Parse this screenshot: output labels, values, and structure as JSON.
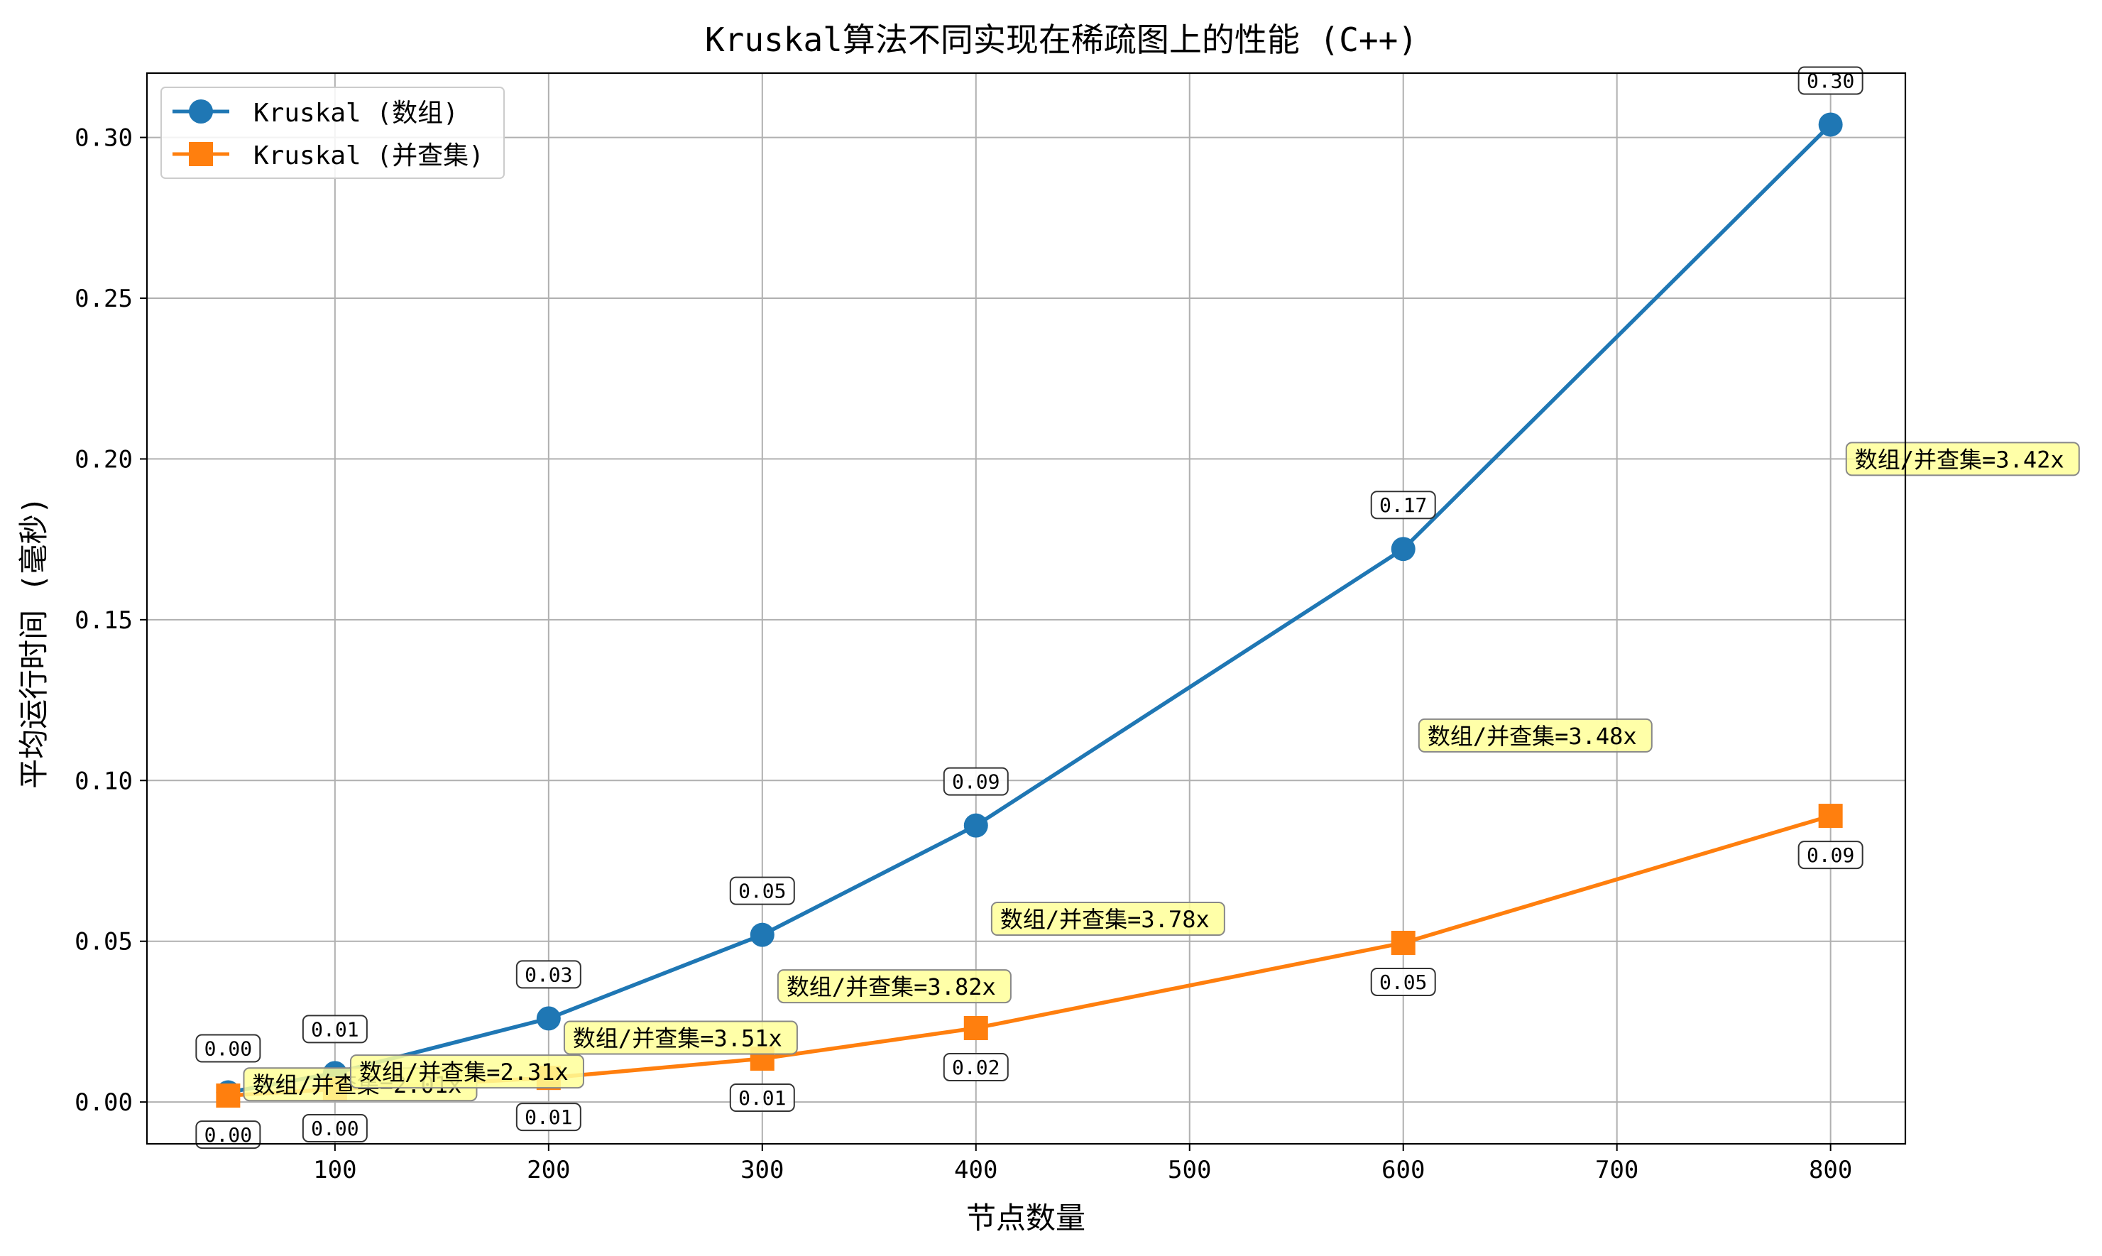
{
  "chart_data": {
    "type": "line",
    "title": "Kruskal算法不同实现在稀疏图上的性能 (C++)",
    "xlabel": "节点数量",
    "ylabel": "平均运行时间 (毫秒)",
    "xlim": [
      12,
      835
    ],
    "ylim": [
      -0.013,
      0.32
    ],
    "xticks": [
      100,
      200,
      300,
      400,
      500,
      600,
      700,
      800
    ],
    "xtick_labels": [
      "100",
      "200",
      "300",
      "400",
      "500",
      "600",
      "700",
      "800"
    ],
    "yticks": [
      0.0,
      0.05,
      0.1,
      0.15,
      0.2,
      0.25,
      0.3
    ],
    "ytick_labels": [
      "0.00",
      "0.05",
      "0.10",
      "0.15",
      "0.20",
      "0.25",
      "0.30"
    ],
    "grid": true,
    "legend_position": "top-left",
    "x": [
      50,
      100,
      200,
      300,
      400,
      600,
      800
    ],
    "series": [
      {
        "name": "Kruskal (数组)",
        "color": "#1f77b4",
        "marker": "circle",
        "values": [
          0.003,
          0.009,
          0.026,
          0.052,
          0.086,
          0.172,
          0.304
        ],
        "labels": [
          "0.00",
          "0.01",
          "0.03",
          "0.05",
          "0.09",
          "0.17",
          "0.30"
        ]
      },
      {
        "name": "Kruskal (并查集)",
        "color": "#ff7f0e",
        "marker": "square",
        "values": [
          0.002,
          0.004,
          0.0075,
          0.0135,
          0.023,
          0.0495,
          0.089
        ],
        "labels": [
          "0.00",
          "0.00",
          "0.01",
          "0.01",
          "0.02",
          "0.05",
          "0.09"
        ]
      }
    ],
    "ratio_annotations": [
      {
        "text": "数组/并查集=2.01x",
        "x": 60,
        "y": 0.0055
      },
      {
        "text": "数组/并查集=2.31x",
        "x": 110,
        "y": 0.0095
      },
      {
        "text": "数组/并查集=3.51x",
        "x": 210,
        "y": 0.02
      },
      {
        "text": "数组/并查集=3.82x",
        "x": 310,
        "y": 0.036
      },
      {
        "text": "数组/并查集=3.78x",
        "x": 410,
        "y": 0.057
      },
      {
        "text": "数组/并查集=3.48x",
        "x": 610,
        "y": 0.114
      },
      {
        "text": "数组/并查集=3.42x",
        "x": 810,
        "y": 0.2
      }
    ],
    "annotation_color": "#ffff99"
  }
}
